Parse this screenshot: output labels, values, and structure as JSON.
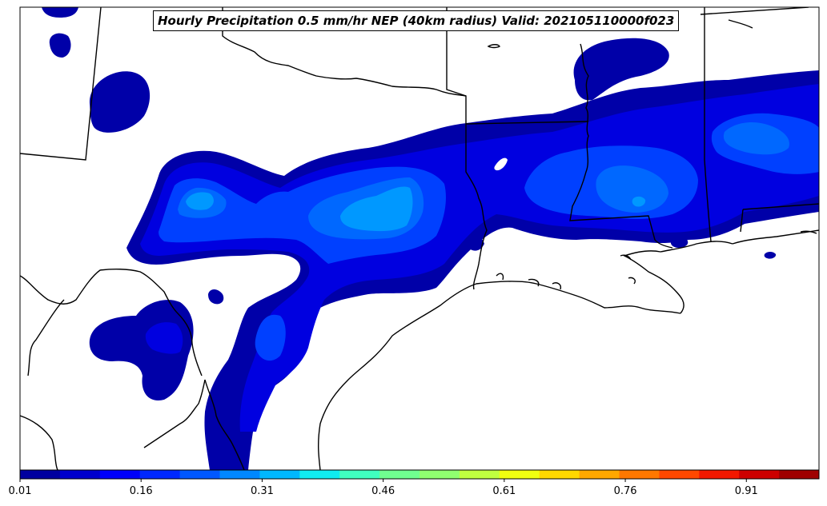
{
  "title": "Hourly Precipitation 0.5 mm/hr NEP (40km radius) Valid: 202105110000f023",
  "colorbar": {
    "tick_labels": [
      "0.01",
      "0.16",
      "0.31",
      "0.46",
      "0.61",
      "0.76",
      "0.91"
    ],
    "tick_values": [
      0.01,
      0.16,
      0.31,
      0.46,
      0.61,
      0.76,
      0.91
    ],
    "range": [
      0.01,
      1.0
    ],
    "colors": [
      "#00009f",
      "#0000cd",
      "#0000fb",
      "#0028ff",
      "#0058ff",
      "#0088ff",
      "#00b8ff",
      "#10ecf0",
      "#40ffc0",
      "#70ff90",
      "#90ff70",
      "#c0ff40",
      "#f0ff10",
      "#ffd800",
      "#ffa800",
      "#ff7800",
      "#ff4800",
      "#f31800",
      "#cd0000",
      "#9f0000"
    ]
  },
  "map": {
    "fill_colors": {
      "lowest": "#0000a8",
      "low": "#0000e0",
      "mid": "#0040ff",
      "upper": "#0068ff",
      "highest": "#0098ff"
    }
  }
}
